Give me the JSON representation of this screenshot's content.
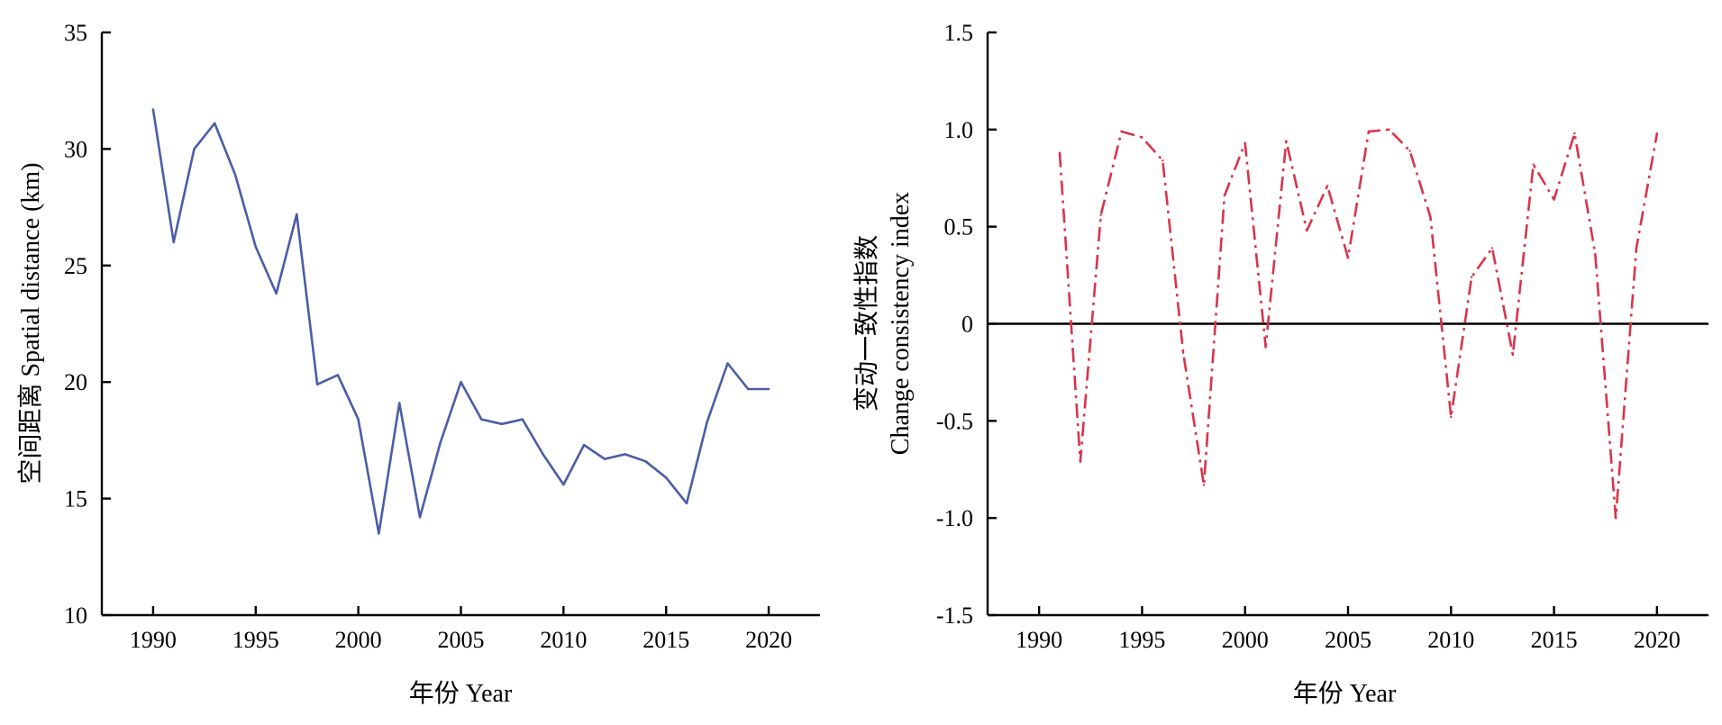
{
  "chart_data": [
    {
      "type": "line",
      "xlabel": "年份 Year",
      "ylabel": "空间距离 Spatial distance (km)",
      "xlim": [
        1987.5,
        2022.5
      ],
      "ylim": [
        10,
        35
      ],
      "xticks": [
        1990,
        1995,
        2000,
        2005,
        2010,
        2015,
        2020
      ],
      "yticks": [
        10,
        15,
        20,
        25,
        30,
        35
      ],
      "series": [
        {
          "color": "#4a5da6",
          "x": [
            1990,
            1991,
            1992,
            1993,
            1994,
            1995,
            1996,
            1997,
            1998,
            1999,
            2000,
            2001,
            2002,
            2003,
            2004,
            2005,
            2006,
            2007,
            2008,
            2009,
            2010,
            2011,
            2012,
            2013,
            2014,
            2015,
            2016,
            2017,
            2018,
            2019,
            2020
          ],
          "values": [
            31.7,
            26.0,
            30.0,
            31.1,
            28.9,
            25.8,
            23.8,
            27.2,
            19.9,
            20.3,
            18.4,
            13.5,
            19.1,
            14.2,
            17.4,
            20.0,
            18.4,
            18.2,
            18.4,
            16.9,
            15.6,
            17.3,
            16.7,
            16.9,
            16.6,
            15.9,
            14.8,
            18.3,
            20.8,
            19.7,
            19.7
          ]
        }
      ]
    },
    {
      "type": "line",
      "xlabel": "年份 Year",
      "ylabel": [
        "变动一致性指数",
        "Change consistency index"
      ],
      "xlim": [
        1987.5,
        2022.5
      ],
      "ylim": [
        -1.5,
        1.5
      ],
      "xticks": [
        1990,
        1995,
        2000,
        2005,
        2010,
        2015,
        2020
      ],
      "yticks": [
        -1.5,
        -1.0,
        -0.5,
        0,
        0.5,
        1.0,
        1.5
      ],
      "ytick_labels": [
        "-1.5",
        "-1.0",
        "-0.5",
        "0",
        "0.5",
        "1.0",
        "1.5"
      ],
      "reference_line": 0,
      "series": [
        {
          "color": "#d9344a",
          "style": "dash-dot",
          "x": [
            1991,
            1992,
            1993,
            1994,
            1995,
            1996,
            1997,
            1998,
            1999,
            2000,
            2001,
            2002,
            2003,
            2004,
            2005,
            2006,
            2007,
            2008,
            2009,
            2010,
            2011,
            2012,
            2013,
            2014,
            2015,
            2016,
            2017,
            2018,
            2019,
            2020
          ],
          "values": [
            0.88,
            -0.71,
            0.56,
            0.99,
            0.96,
            0.84,
            -0.15,
            -0.83,
            0.66,
            0.93,
            -0.12,
            0.94,
            0.48,
            0.71,
            0.34,
            0.99,
            1.0,
            0.89,
            0.55,
            -0.48,
            0.24,
            0.39,
            -0.16,
            0.82,
            0.64,
            0.98,
            0.36,
            -1.0,
            0.39,
            0.98
          ]
        }
      ]
    }
  ]
}
